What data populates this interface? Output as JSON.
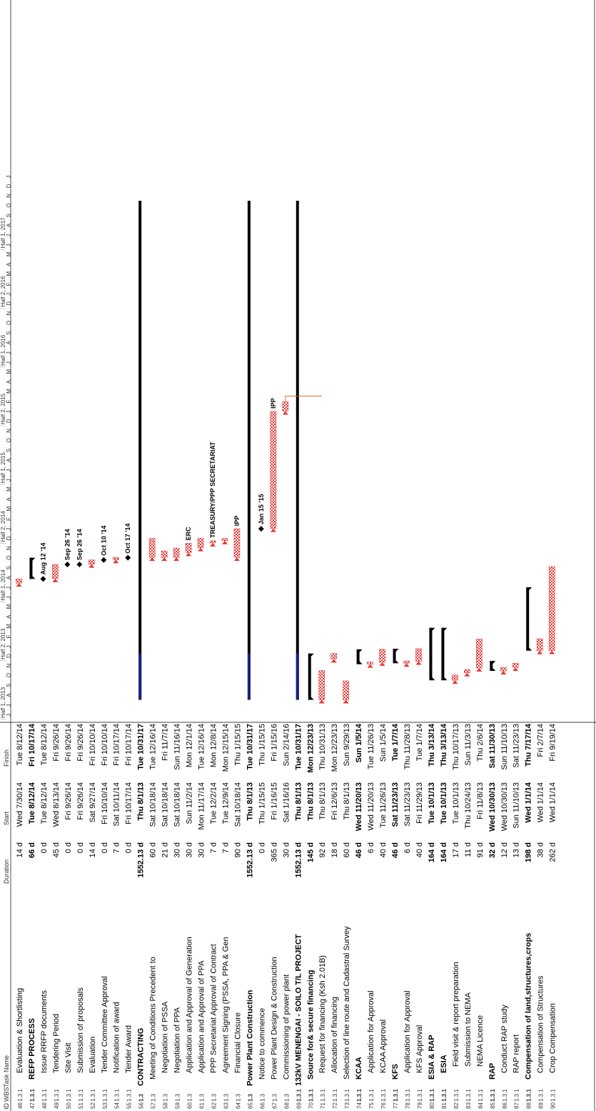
{
  "headers": {
    "id": "ID",
    "wbs": "WBS",
    "name": "Task Name",
    "duration": "Duration",
    "start": "Start",
    "finish": "Finish"
  },
  "timescale": {
    "halves": [
      "Half 1, 2013",
      "Half 2, 2013",
      "Half 1, 2014",
      "Half 2, 2014",
      "Half 1, 2015",
      "Half 2, 2015",
      "Half 1, 2016",
      "Half 2, 2016",
      "Half 1, 2017"
    ],
    "months": [
      "J",
      "J",
      "A",
      "S",
      "O",
      "N",
      "D",
      "J",
      "F",
      "M",
      "A",
      "M",
      "J",
      "J",
      "A",
      "S",
      "O",
      "N",
      "D",
      "J",
      "F",
      "M",
      "A",
      "M",
      "J",
      "J",
      "A",
      "S",
      "O",
      "N",
      "D",
      "J",
      "F",
      "M",
      "A",
      "M",
      "J",
      "J",
      "A",
      "S",
      "O",
      "N",
      "D",
      "J",
      "F",
      "M",
      "A",
      "M",
      "J",
      "J",
      "A",
      "S",
      "O",
      "N",
      "D",
      "J"
    ]
  },
  "rows": [
    {
      "id": "46",
      "wbs": "1.3.1",
      "name": "Evaluation & Shortlisting",
      "dur": "14 d",
      "start": "Wed 7/30/14",
      "finish": "Tue 8/12/14",
      "bold": false,
      "indent": 2
    },
    {
      "id": "47",
      "wbs": "1.3.1",
      "name": "REFP PROCESS",
      "dur": "66 d",
      "start": "Tue 8/12/14",
      "finish": "Fri 10/17/14",
      "bold": true,
      "indent": 1
    },
    {
      "id": "48",
      "wbs": "1.3.1",
      "name": "Issue RRFP documents",
      "dur": "0 d",
      "start": "Tue 8/12/14",
      "finish": "Tue 8/12/14",
      "bold": false,
      "indent": 2
    },
    {
      "id": "49",
      "wbs": "1.3.1",
      "name": "Tendering Period",
      "dur": "45 d",
      "start": "Wed 8/13/14",
      "finish": "Fri 9/26/14",
      "bold": false,
      "indent": 2
    },
    {
      "id": "50",
      "wbs": "1.3.1",
      "name": "Site Visit",
      "dur": "0 d",
      "start": "Fri 9/26/14",
      "finish": "Fri 9/26/14",
      "bold": false,
      "indent": 2
    },
    {
      "id": "51",
      "wbs": "1.3.1",
      "name": "Submission of proposals",
      "dur": "0 d",
      "start": "Fri 9/26/14",
      "finish": "Fri 9/26/14",
      "bold": false,
      "indent": 2
    },
    {
      "id": "52",
      "wbs": "1.3.1",
      "name": "Evaluation",
      "dur": "14 d",
      "start": "Sat 9/27/14",
      "finish": "Fri 10/10/14",
      "bold": false,
      "indent": 2
    },
    {
      "id": "53",
      "wbs": "1.3.1",
      "name": "Tender Committee Approval",
      "dur": "0 d",
      "start": "Fri 10/10/14",
      "finish": "Fri 10/10/14",
      "bold": false,
      "indent": 2
    },
    {
      "id": "54",
      "wbs": "1.3.1",
      "name": "Notification of award",
      "dur": "7 d",
      "start": "Sat 10/11/14",
      "finish": "Fri 10/17/14",
      "bold": false,
      "indent": 2
    },
    {
      "id": "55",
      "wbs": "1.3.1",
      "name": "Tender Award",
      "dur": "0 d",
      "start": "Fri 10/17/14",
      "finish": "Fri 10/17/14",
      "bold": false,
      "indent": 2
    },
    {
      "id": "56",
      "wbs": "1.3",
      "name": "CONTRACTING",
      "dur": "1552.13 d",
      "start": "Thu 8/1/13",
      "finish": "Tue 10/31/17",
      "bold": true,
      "indent": 0
    },
    {
      "id": "57",
      "wbs": "1.3",
      "name": "Meeting of Conditions Precedent to",
      "dur": "60 d",
      "start": "Sat 10/18/14",
      "finish": "Tue 12/16/14",
      "bold": false,
      "indent": 1
    },
    {
      "id": "58",
      "wbs": "1.3",
      "name": "Negotiation of PSSA",
      "dur": "21 d",
      "start": "Sat 10/18/14",
      "finish": "Fri 11/7/14",
      "bold": false,
      "indent": 2
    },
    {
      "id": "59",
      "wbs": "1.3",
      "name": "Negotiation of PPA",
      "dur": "30 d",
      "start": "Sat 10/18/14",
      "finish": "Sun 11/16/14",
      "bold": false,
      "indent": 2
    },
    {
      "id": "60",
      "wbs": "1.3",
      "name": "Application and Approval of Generation",
      "dur": "30 d",
      "start": "Sun 11/2/14",
      "finish": "Mon 12/1/14",
      "bold": false,
      "indent": 2
    },
    {
      "id": "61",
      "wbs": "1.3",
      "name": "Application and Approval of PPA",
      "dur": "30 d",
      "start": "Mon 11/17/14",
      "finish": "Tue 12/16/14",
      "bold": false,
      "indent": 2
    },
    {
      "id": "62",
      "wbs": "1.3",
      "name": "PPP Secretariat Approval of Contract",
      "dur": "7 d",
      "start": "Tue 12/2/14",
      "finish": "Mon 12/8/14",
      "bold": false,
      "indent": 2
    },
    {
      "id": "63",
      "wbs": "1.3",
      "name": "Agreement Signing (PSSA, PPA & Gen",
      "dur": "7 d",
      "start": "Tue 12/9/14",
      "finish": "Mon 12/15/14",
      "bold": false,
      "indent": 2
    },
    {
      "id": "64",
      "wbs": "1.3",
      "name": "Financial Closure",
      "dur": "90 d",
      "start": "Sat 10/18/14",
      "finish": "Thu 1/15/15",
      "bold": false,
      "indent": 2
    },
    {
      "id": "65",
      "wbs": "1.3",
      "name": "Power Plant Construction",
      "dur": "1552.13 d",
      "start": "Thu 8/1/13",
      "finish": "Tue 10/31/17",
      "bold": true,
      "indent": 0
    },
    {
      "id": "66",
      "wbs": "1.3",
      "name": "Notice to commence",
      "dur": "0 d",
      "start": "Thu 1/15/15",
      "finish": "Thu 1/15/15",
      "bold": false,
      "indent": 1
    },
    {
      "id": "67",
      "wbs": "1.3",
      "name": "Power Plant Design & Construction",
      "dur": "365 d",
      "start": "Fri 1/16/15",
      "finish": "Fri 1/15/16",
      "bold": false,
      "indent": 1
    },
    {
      "id": "68",
      "wbs": "1.3",
      "name": "Commissioning of power plant",
      "dur": "30 d",
      "start": "Sat 1/16/16",
      "finish": "Sun 2/14/16",
      "bold": false,
      "indent": 1
    },
    {
      "id": "69",
      "wbs": "1.3.1",
      "name": "132kV MENENGAI - SOILO T/L PROJECT",
      "dur": "1552.13 d",
      "start": "Thu 8/1/13",
      "finish": "Tue 10/31/17",
      "bold": true,
      "indent": 0
    },
    {
      "id": "70",
      "wbs": "1.3.1",
      "name": "Source for& secure financing",
      "dur": "145 d",
      "start": "Thu 8/1/13",
      "finish": "Mon 12/23/13",
      "bold": true,
      "indent": 1
    },
    {
      "id": "71",
      "wbs": "1.3.1",
      "name": "Request for financing (Ksh 2.01B)",
      "dur": "92 d",
      "start": "Thu 8/1/13",
      "finish": "Thu 10/31/13",
      "bold": false,
      "indent": 2
    },
    {
      "id": "72",
      "wbs": "1.3.1",
      "name": "Allocation of financing",
      "dur": "18 d",
      "start": "Fri 12/6/13",
      "finish": "Mon 12/23/13",
      "bold": false,
      "indent": 2
    },
    {
      "id": "73",
      "wbs": "1.3.1",
      "name": "Selection of line route and Cadastral Survey",
      "dur": "60 d",
      "start": "Thu 8/1/13",
      "finish": "Sun 9/29/13",
      "bold": false,
      "indent": 1
    },
    {
      "id": "74",
      "wbs": "1.3.1",
      "name": "KCAA",
      "dur": "46 d",
      "start": "Wed 11/20/13",
      "finish": "Sun 1/5/14",
      "bold": true,
      "indent": 1
    },
    {
      "id": "75",
      "wbs": "1.3.1",
      "name": "Application for Approval",
      "dur": "6 d",
      "start": "Wed 11/20/13",
      "finish": "Tue 11/26/13",
      "bold": false,
      "indent": 2
    },
    {
      "id": "76",
      "wbs": "1.3.1",
      "name": "KCAA Approval",
      "dur": "40 d",
      "start": "Tue 11/26/13",
      "finish": "Sun 1/5/14",
      "bold": false,
      "indent": 2
    },
    {
      "id": "77",
      "wbs": "1.3.1",
      "name": "KFS",
      "dur": "46 d",
      "start": "Sat 11/23/13",
      "finish": "Tue 1/7/14",
      "bold": true,
      "indent": 1
    },
    {
      "id": "78",
      "wbs": "1.3.1",
      "name": "Application for Approval",
      "dur": "6 d",
      "start": "Sat 11/23/13",
      "finish": "Thu 11/28/13",
      "bold": false,
      "indent": 2
    },
    {
      "id": "79",
      "wbs": "1.3.1",
      "name": "KFS Approval",
      "dur": "40 d",
      "start": "Fri 11/29/13",
      "finish": "Tue 1/7/14",
      "bold": false,
      "indent": 2
    },
    {
      "id": "80",
      "wbs": "1.3.1",
      "name": "ESIA & RAP",
      "dur": "164 d",
      "start": "Tue 10/1/13",
      "finish": "Thu 3/13/14",
      "bold": true,
      "indent": 1
    },
    {
      "id": "81",
      "wbs": "1.3.1",
      "name": "ESIA",
      "dur": "164 d",
      "start": "Tue 10/1/13",
      "finish": "Thu 3/13/14",
      "bold": true,
      "indent": 2
    },
    {
      "id": "82",
      "wbs": "1.3.1",
      "name": "Field visit & report preparation",
      "dur": "17 d",
      "start": "Tue 10/1/13",
      "finish": "Thu 10/17/13",
      "bold": false,
      "indent": 3
    },
    {
      "id": "83",
      "wbs": "1.3.1",
      "name": "Submission to NEMA",
      "dur": "11 d",
      "start": "Thu 10/24/13",
      "finish": "Sun 11/3/13",
      "bold": false,
      "indent": 3
    },
    {
      "id": "84",
      "wbs": "1.3.1",
      "name": "NEMA Licence",
      "dur": "91 d",
      "start": "Fri 11/8/13",
      "finish": "Thu 2/6/14",
      "bold": false,
      "indent": 3
    },
    {
      "id": "85",
      "wbs": "1.3.1",
      "name": "RAP",
      "dur": "32 d",
      "start": "Wed 10/30/13",
      "finish": "Sat 11/30/13",
      "bold": true,
      "indent": 1
    },
    {
      "id": "86",
      "wbs": "1.3.1",
      "name": "Conduct RAP study",
      "dur": "12 d",
      "start": "Wed 10/30/13",
      "finish": "Sun 11/10/13",
      "bold": false,
      "indent": 2
    },
    {
      "id": "87",
      "wbs": "1.3.1",
      "name": "RAP report",
      "dur": "13 d",
      "start": "Sun 11/10/13",
      "finish": "Sat 11/23/13",
      "bold": false,
      "indent": 2
    },
    {
      "id": "88",
      "wbs": "1.3.1",
      "name": "Compensation of land,structures,crops",
      "dur": "198 d",
      "start": "Wed 1/1/14",
      "finish": "Thu 7/17/14",
      "bold": true,
      "indent": 1
    },
    {
      "id": "89",
      "wbs": "1.3.1",
      "name": "Compensation of Structures",
      "dur": "38 d",
      "start": "Wed 1/1/14",
      "finish": "Fri 2/7/14",
      "bold": false,
      "indent": 2
    },
    {
      "id": "90",
      "wbs": "1.3.1",
      "name": "Crop Compensation",
      "dur": "262 d",
      "start": "Wed 1/1/14",
      "finish": "Fri 9/19/14",
      "bold": false,
      "indent": 2
    }
  ],
  "milestone_labels": {
    "48": "Aug 12 '14",
    "50": "Sep 26 '14",
    "51": "Sep 26 '14",
    "53": "Oct 10 '14",
    "55": "Oct 17 '14",
    "66": "Jan 15 '15"
  },
  "bar_labels": {
    "60": "ERC",
    "62": "TREASURY/PPP SECRETARIAT",
    "64": "IPP",
    "67": "IPP"
  },
  "colors": {
    "task": "#e53935",
    "summary": "#000000",
    "critical": "#1a237e",
    "link": "#e65100",
    "grid": "#000000"
  }
}
